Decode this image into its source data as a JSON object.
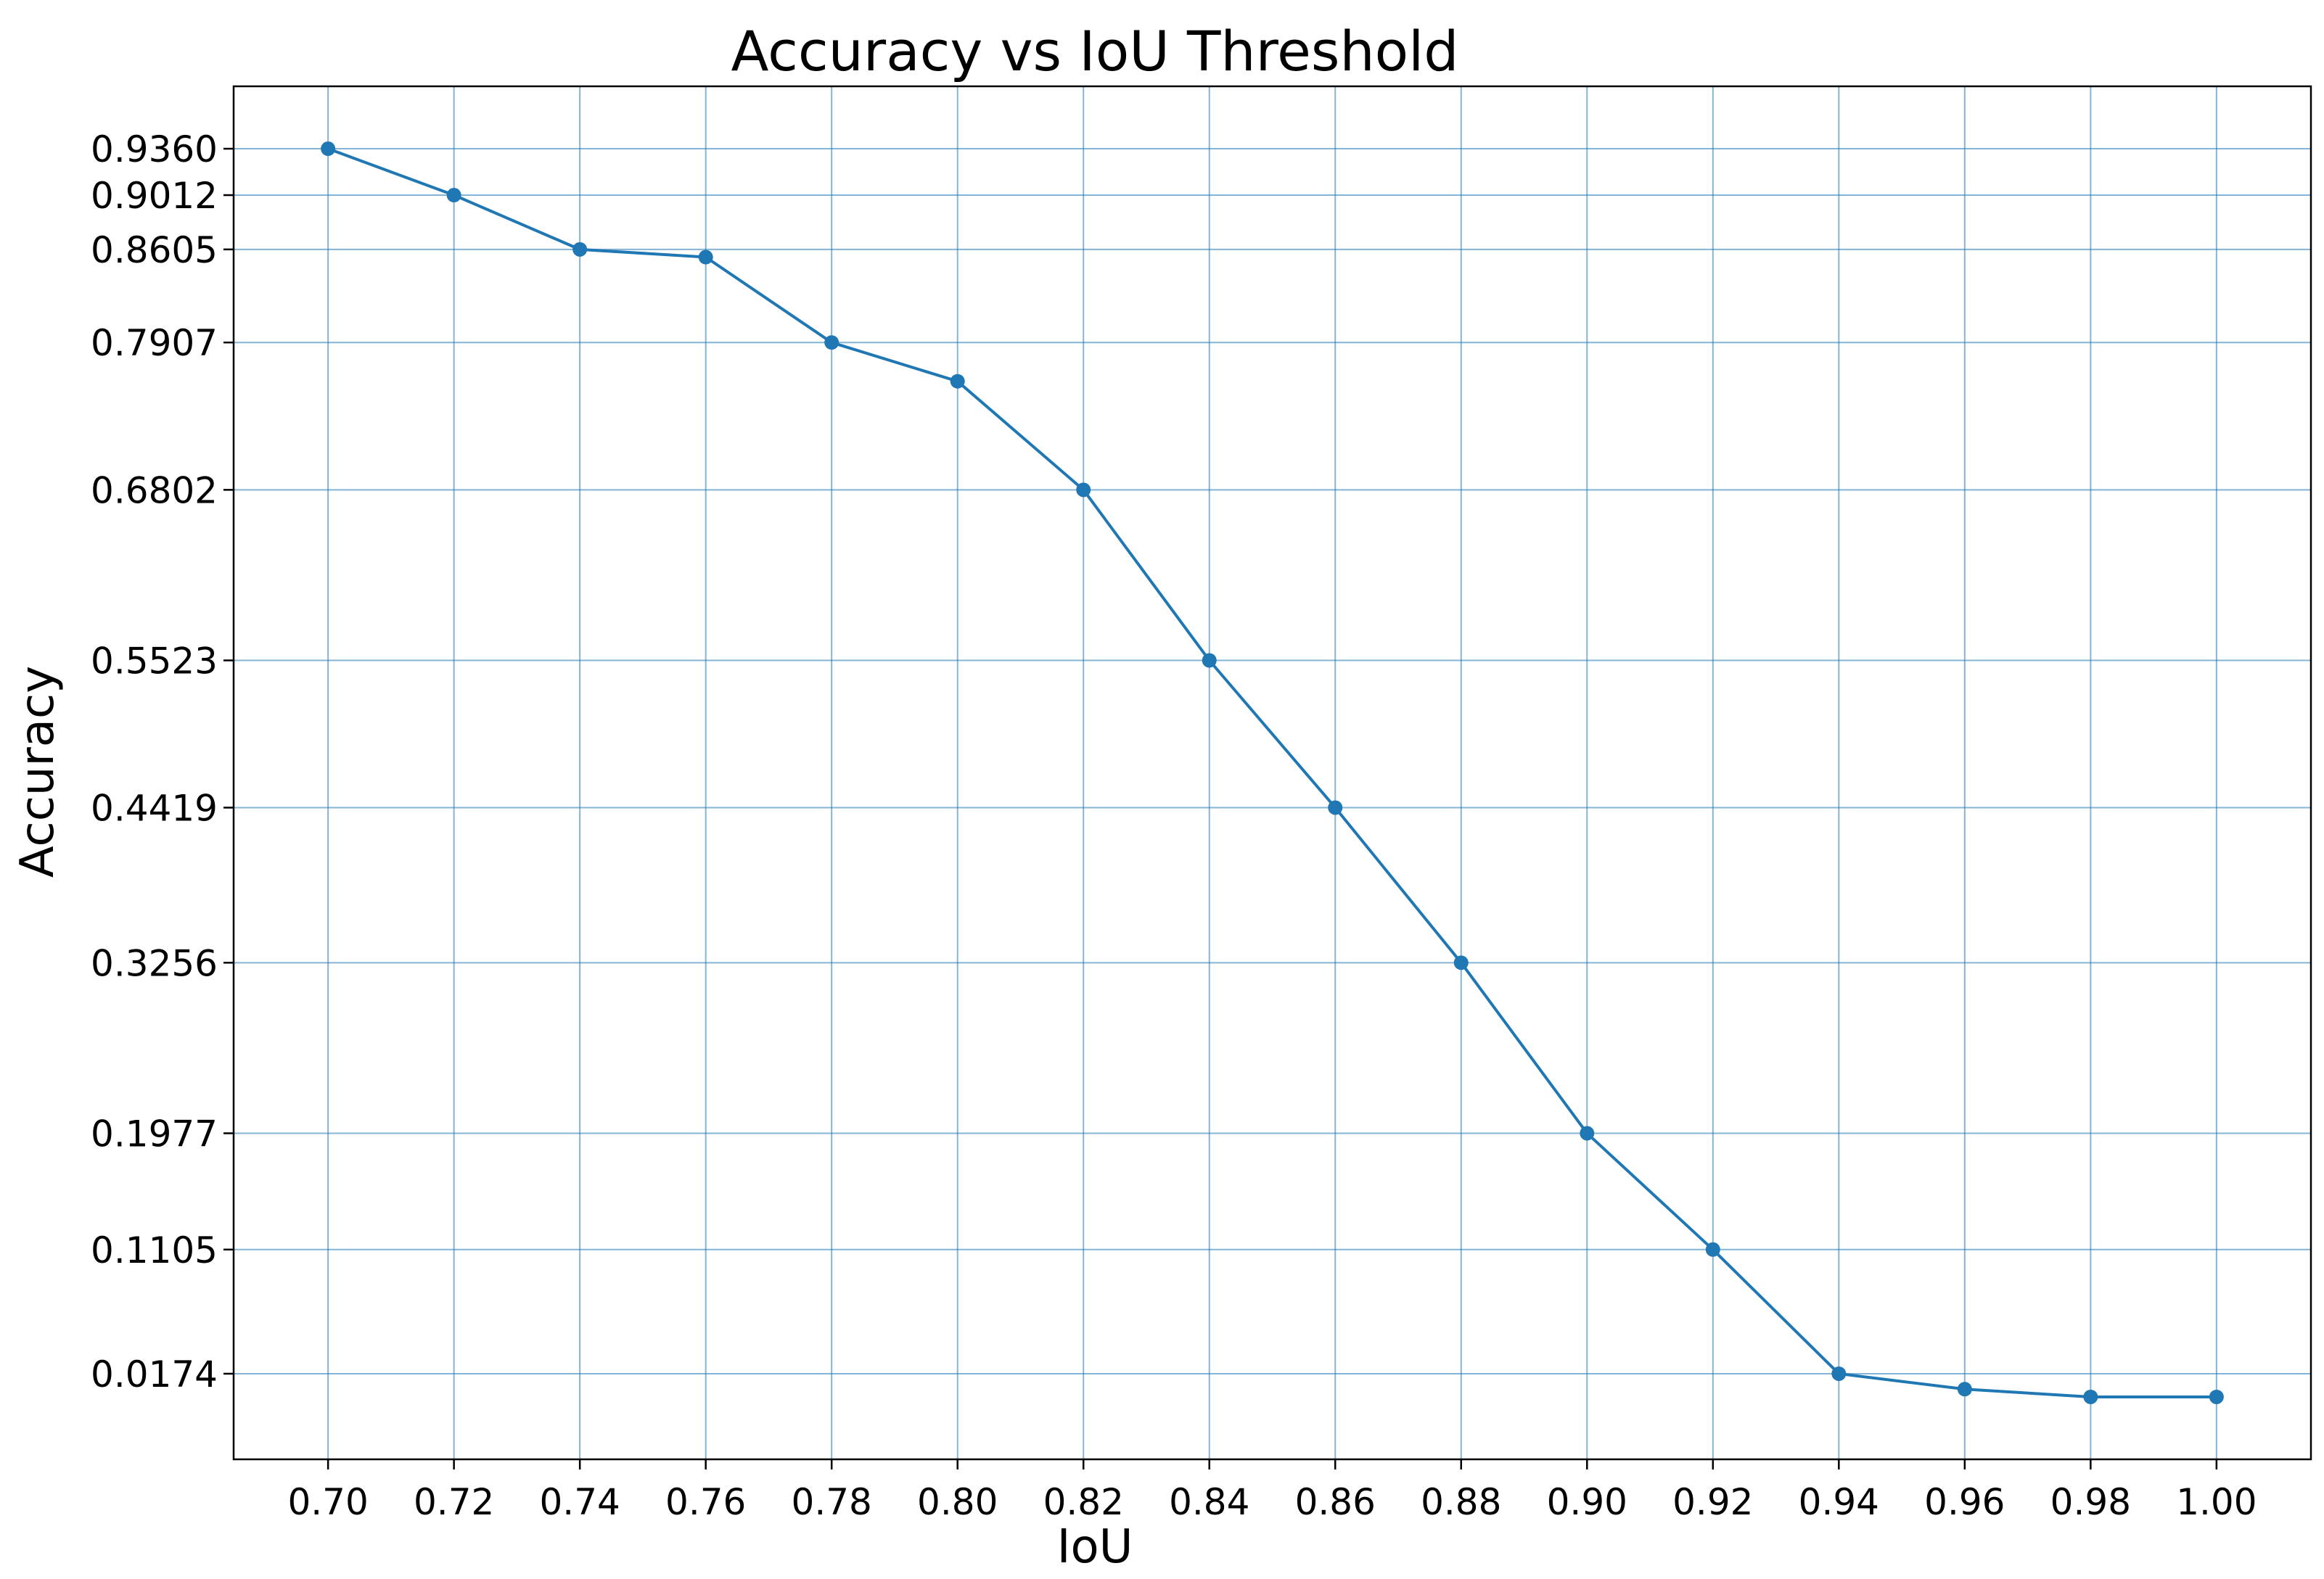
{
  "chart_data": {
    "type": "line",
    "title": "Accuracy vs IoU Threshold",
    "xlabel": "IoU",
    "ylabel": "Accuracy",
    "x": [
      0.7,
      0.72,
      0.74,
      0.76,
      0.78,
      0.8,
      0.82,
      0.84,
      0.86,
      0.88,
      0.9,
      0.92,
      0.94,
      0.96,
      0.98,
      1.0
    ],
    "x_tick_labels": [
      "0.70",
      "0.72",
      "0.74",
      "0.76",
      "0.78",
      "0.80",
      "0.82",
      "0.84",
      "0.86",
      "0.88",
      "0.90",
      "0.92",
      "0.94",
      "0.96",
      "0.98",
      "1.00"
    ],
    "y_ticks": [
      0.936,
      0.9012,
      0.8605,
      0.7907,
      0.6802,
      0.5523,
      0.4419,
      0.3256,
      0.1977,
      0.1105,
      0.0174
    ],
    "y_tick_labels": [
      "0.9360",
      "0.9012",
      "0.8605",
      "0.7907",
      "0.6802",
      "0.5523",
      "0.4419",
      "0.3256",
      "0.1977",
      "0.1105",
      "0.0174"
    ],
    "series": [
      {
        "values": [
          0.936,
          0.9012,
          0.8605,
          0.8547,
          0.7907,
          0.7616,
          0.6802,
          0.5523,
          0.4419,
          0.3256,
          0.1977,
          0.1105,
          0.0174,
          0.0058,
          0.0,
          0.0
        ],
        "color": "#1f77b4",
        "marker": "circle"
      }
    ],
    "xlim": [
      0.685,
      1.015
    ],
    "ylim": [
      -0.0468,
      0.9828
    ],
    "grid": true
  }
}
